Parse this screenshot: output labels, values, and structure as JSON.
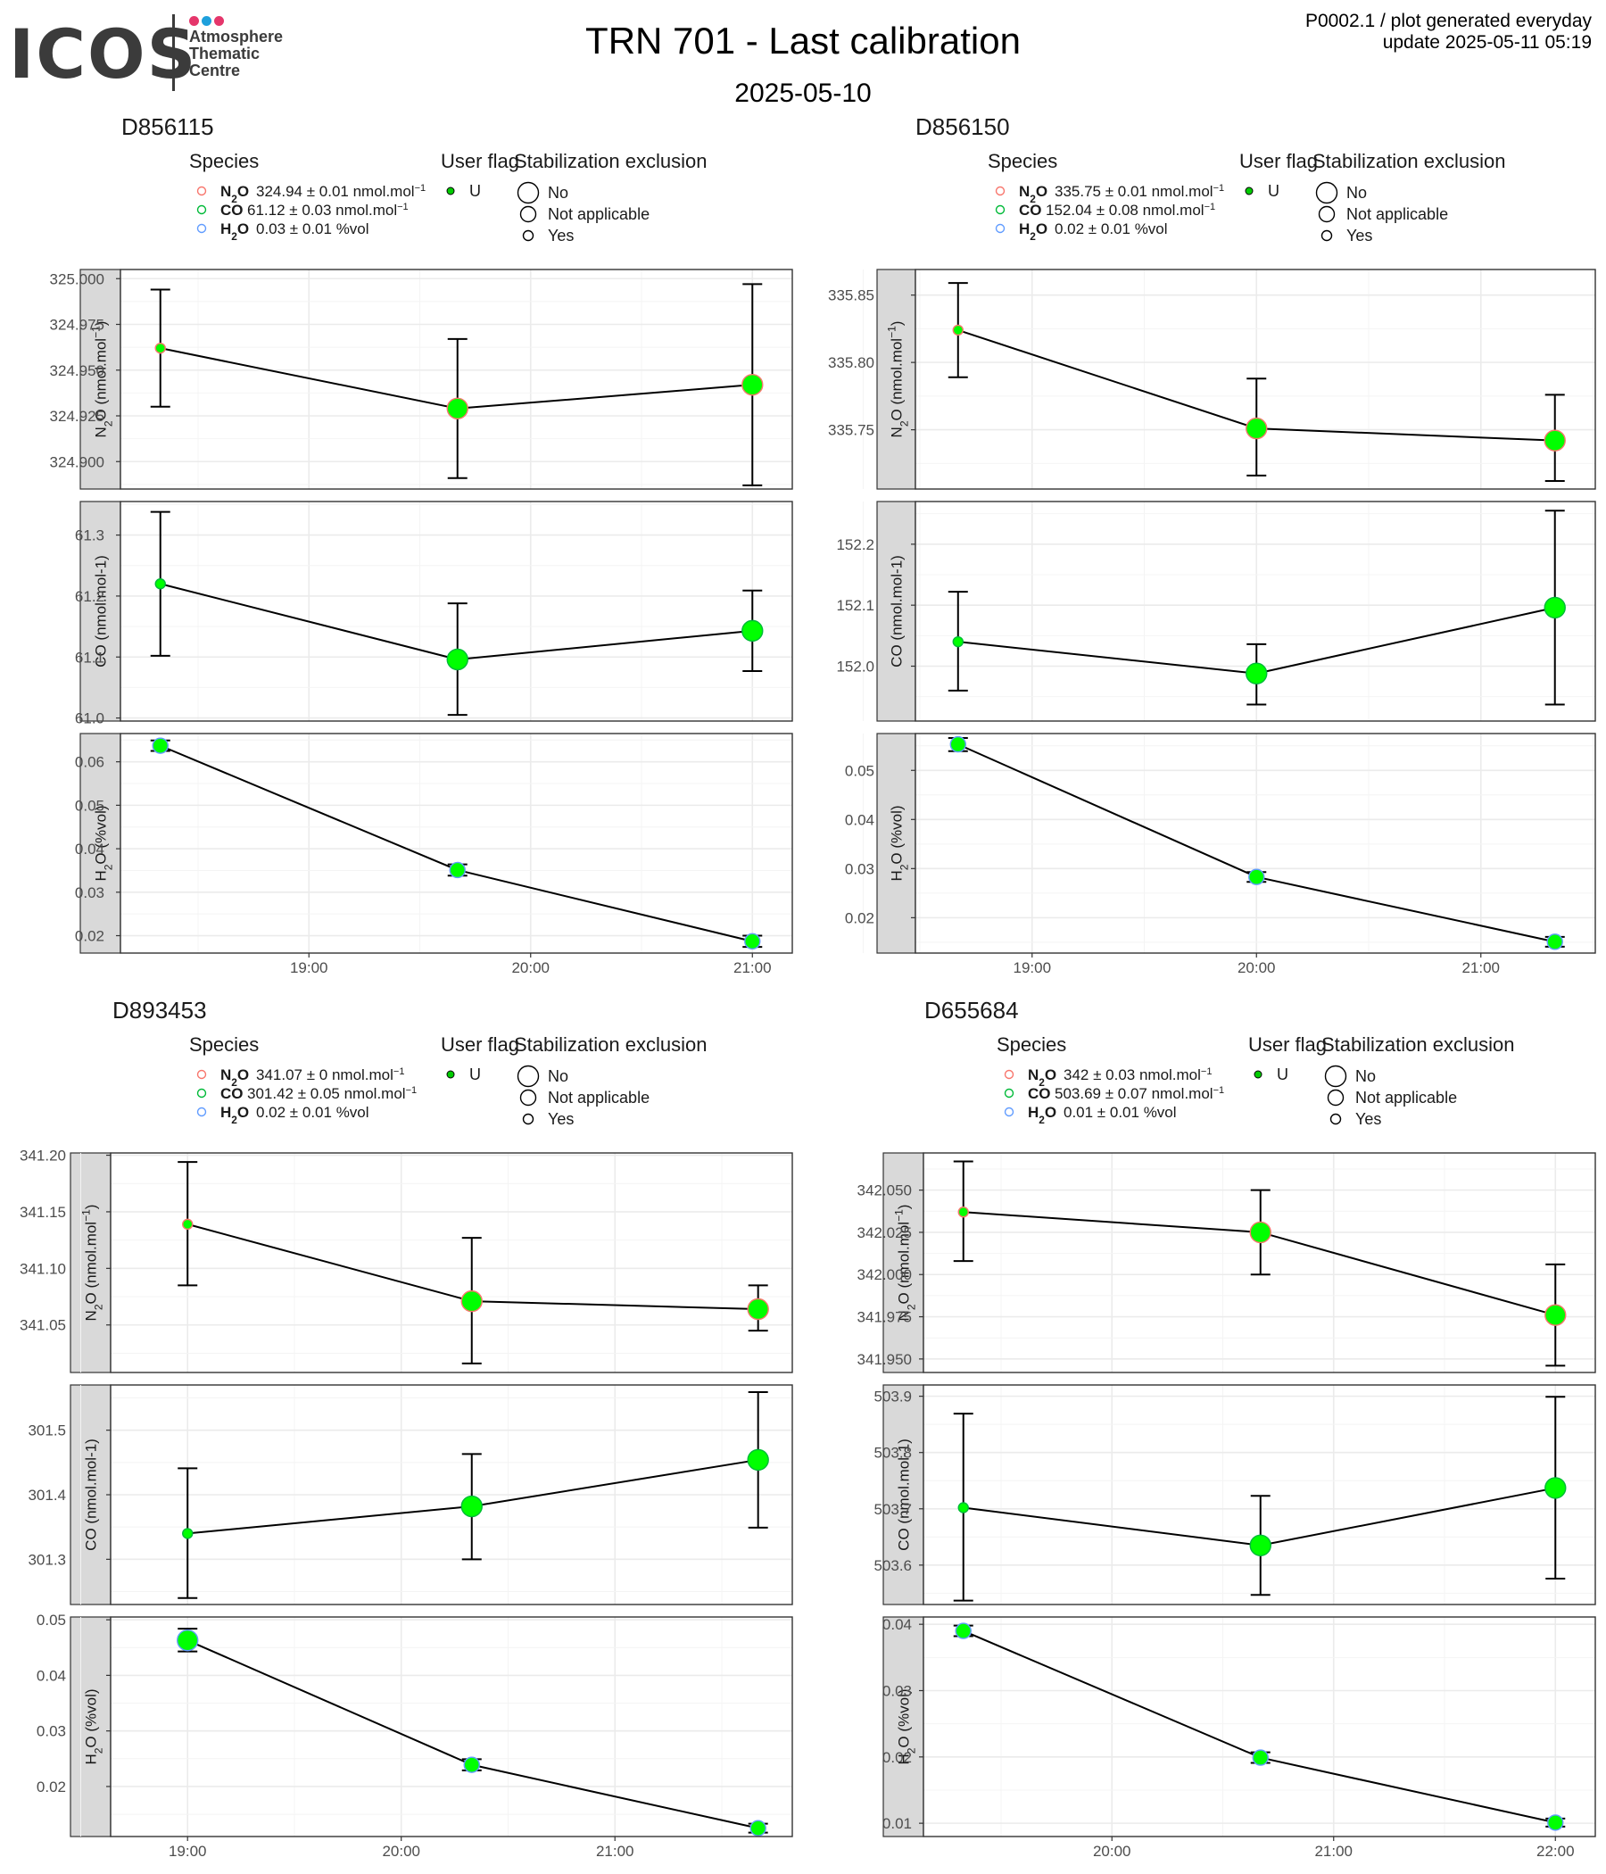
{
  "header": {
    "logo_text": "ICOS",
    "logo_subtitle": [
      "Atmosphere",
      "Thematic",
      "Centre"
    ],
    "logo_dots": [
      "#e5366b",
      "#1ea0dc",
      "#e5366b"
    ],
    "title": "TRN 701 - Last calibration",
    "subtitle": "2025-05-10",
    "credit_line1": "P0002.1 / plot generated everyday",
    "credit_line2": "update  2025-05-11 05:19"
  },
  "legend": {
    "species_title": "Species",
    "user_flag_title": "User flag",
    "stabilization_title": "Stabilization exclusion",
    "user_flag_value": "U",
    "stabilization_values": [
      "No",
      "Not applicable",
      "Yes"
    ]
  },
  "colors": {
    "n2o": "#f8766d",
    "co": "#00ba38",
    "h2o": "#619cff",
    "point_fill": "#00ff00",
    "strip": "#d9d9d9",
    "grid": "#ebebeb"
  },
  "chart_data": [
    {
      "type": "scatter",
      "title": "D856115",
      "legend_species": [
        {
          "name": "N2O",
          "value": "324.94",
          "unc": "0.01",
          "unit": "nmol.mol"
        },
        {
          "name": "CO",
          "value": "61.12",
          "unc": "0.03",
          "unit": "nmol.mol"
        },
        {
          "name": "H2O",
          "value": "0.03",
          "unc": "0.01",
          "unit": "%vol"
        }
      ],
      "x_ticks": [
        "19:00",
        "20:00",
        "21:00"
      ],
      "x_tick_hours": [
        19,
        20,
        21
      ],
      "x_range": [
        18.15,
        21.18
      ],
      "facets": [
        {
          "strip_label": "N2O (nmol.mol-1)",
          "ylim": [
            324.885,
            325.005
          ],
          "y_ticks": [
            325.0,
            324.975,
            324.95,
            324.925,
            324.9
          ],
          "y_tick_labels": [
            "325.000",
            "324.975",
            "324.950",
            "324.925",
            "324.900"
          ],
          "points": [
            {
              "x": 18.33,
              "y": 324.962,
              "lo": 324.93,
              "hi": 324.994,
              "size": "Yes"
            },
            {
              "x": 19.67,
              "y": 324.929,
              "lo": 324.891,
              "hi": 324.967,
              "size": "No"
            },
            {
              "x": 21.0,
              "y": 324.942,
              "lo": 324.887,
              "hi": 324.997,
              "size": "No"
            }
          ]
        },
        {
          "strip_label": "CO (nmol.mol-1)",
          "ylim": [
            60.995,
            61.355
          ],
          "y_ticks": [
            61.3,
            61.2,
            61.1,
            61.0
          ],
          "y_tick_labels": [
            "61.3",
            "61.2",
            "61.1",
            "61.0"
          ],
          "points": [
            {
              "x": 18.33,
              "y": 61.22,
              "lo": 61.102,
              "hi": 61.338,
              "size": "Yes"
            },
            {
              "x": 19.67,
              "y": 61.096,
              "lo": 61.005,
              "hi": 61.188,
              "size": "No"
            },
            {
              "x": 21.0,
              "y": 61.143,
              "lo": 61.077,
              "hi": 61.209,
              "size": "No"
            }
          ]
        },
        {
          "strip_label": "H2O (%vol)",
          "ylim": [
            0.016,
            0.0665
          ],
          "y_ticks": [
            0.06,
            0.05,
            0.04,
            0.03,
            0.02
          ],
          "y_tick_labels": [
            "0.06",
            "0.05",
            "0.04",
            "0.03",
            "0.02"
          ],
          "points": [
            {
              "x": 18.33,
              "y": 0.0637,
              "lo": 0.0625,
              "hi": 0.0649,
              "size": "Not applicable"
            },
            {
              "x": 19.67,
              "y": 0.0351,
              "lo": 0.0338,
              "hi": 0.0364,
              "size": "Not applicable"
            },
            {
              "x": 21.0,
              "y": 0.0187,
              "lo": 0.0174,
              "hi": 0.02,
              "size": "Not applicable"
            }
          ]
        }
      ]
    },
    {
      "type": "scatter",
      "title": "D856150",
      "legend_species": [
        {
          "name": "N2O",
          "value": "335.75",
          "unc": "0.01",
          "unit": "nmol.mol"
        },
        {
          "name": "CO",
          "value": "152.04",
          "unc": "0.08",
          "unit": "nmol.mol"
        },
        {
          "name": "H2O",
          "value": "0.02",
          "unc": "0.01",
          "unit": "%vol"
        }
      ],
      "x_ticks": [
        "19:00",
        "20:00",
        "21:00"
      ],
      "x_tick_hours": [
        19,
        20,
        21
      ],
      "x_range": [
        18.48,
        21.51
      ],
      "facets": [
        {
          "strip_label": "N2O (nmol.mol-1)",
          "ylim": [
            335.706,
            335.869
          ],
          "y_ticks": [
            335.85,
            335.8,
            335.75
          ],
          "y_tick_labels": [
            "335.85",
            "335.80",
            "335.75"
          ],
          "points": [
            {
              "x": 18.67,
              "y": 335.824,
              "lo": 335.789,
              "hi": 335.859,
              "size": "Yes"
            },
            {
              "x": 20.0,
              "y": 335.751,
              "lo": 335.716,
              "hi": 335.788,
              "size": "No"
            },
            {
              "x": 21.33,
              "y": 335.742,
              "lo": 335.712,
              "hi": 335.776,
              "size": "No"
            }
          ]
        },
        {
          "strip_label": "CO (nmol.mol-1)",
          "ylim": [
            151.91,
            152.27
          ],
          "y_ticks": [
            152.2,
            152.1,
            152.0
          ],
          "y_tick_labels": [
            "152.2",
            "152.1",
            "152.0"
          ],
          "points": [
            {
              "x": 18.67,
              "y": 152.04,
              "lo": 151.96,
              "hi": 152.122,
              "size": "Yes"
            },
            {
              "x": 20.0,
              "y": 151.988,
              "lo": 151.937,
              "hi": 152.036,
              "size": "No"
            },
            {
              "x": 21.33,
              "y": 152.096,
              "lo": 151.937,
              "hi": 152.255,
              "size": "No"
            }
          ]
        },
        {
          "strip_label": "H2O (%vol)",
          "ylim": [
            0.0128,
            0.0575
          ],
          "y_ticks": [
            0.05,
            0.04,
            0.03,
            0.02
          ],
          "y_tick_labels": [
            "0.05",
            "0.04",
            "0.03",
            "0.02"
          ],
          "points": [
            {
              "x": 18.67,
              "y": 0.0553,
              "lo": 0.0539,
              "hi": 0.0566,
              "size": "Not applicable"
            },
            {
              "x": 20.0,
              "y": 0.0283,
              "lo": 0.0273,
              "hi": 0.0293,
              "size": "Not applicable"
            },
            {
              "x": 21.33,
              "y": 0.0151,
              "lo": 0.0141,
              "hi": 0.0161,
              "size": "Not applicable"
            }
          ]
        }
      ]
    },
    {
      "type": "scatter",
      "title": "D893453",
      "legend_species": [
        {
          "name": "N2O",
          "value": "341.07",
          "unc": "0",
          "unit": "nmol.mol"
        },
        {
          "name": "CO",
          "value": "301.42",
          "unc": "0.05",
          "unit": "nmol.mol"
        },
        {
          "name": "H2O",
          "value": "0.02",
          "unc": "0.01",
          "unit": "%vol"
        }
      ],
      "x_ticks": [
        "19:00",
        "20:00",
        "21:00"
      ],
      "x_tick_hours": [
        19,
        20,
        21
      ],
      "x_range": [
        18.64,
        21.83
      ],
      "facets": [
        {
          "strip_label": "N2O (nmol.mol-1)",
          "ylim": [
            341.008,
            341.202
          ],
          "y_ticks": [
            341.2,
            341.15,
            341.1,
            341.05
          ],
          "y_tick_labels": [
            "341.20",
            "341.15",
            "341.10",
            "341.05"
          ],
          "points": [
            {
              "x": 19.0,
              "y": 341.139,
              "lo": 341.085,
              "hi": 341.194,
              "size": "Yes"
            },
            {
              "x": 20.33,
              "y": 341.071,
              "lo": 341.016,
              "hi": 341.127,
              "size": "No"
            },
            {
              "x": 21.67,
              "y": 341.064,
              "lo": 341.045,
              "hi": 341.085,
              "size": "No"
            }
          ]
        },
        {
          "strip_label": "CO (nmol.mol-1)",
          "ylim": [
            301.23,
            301.57
          ],
          "y_ticks": [
            301.5,
            301.4,
            301.3
          ],
          "y_tick_labels": [
            "301.5",
            "301.4",
            "301.3"
          ],
          "points": [
            {
              "x": 19.0,
              "y": 301.34,
              "lo": 301.24,
              "hi": 301.441,
              "size": "Yes"
            },
            {
              "x": 20.33,
              "y": 301.382,
              "lo": 301.3,
              "hi": 301.463,
              "size": "No"
            },
            {
              "x": 21.67,
              "y": 301.454,
              "lo": 301.349,
              "hi": 301.559,
              "size": "No"
            }
          ]
        },
        {
          "strip_label": "H2O (%vol)",
          "ylim": [
            0.011,
            0.0505
          ],
          "y_ticks": [
            0.05,
            0.04,
            0.03,
            0.02
          ],
          "y_tick_labels": [
            "0.05",
            "0.04",
            "0.03",
            "0.02"
          ],
          "points": [
            {
              "x": 19.0,
              "y": 0.0463,
              "lo": 0.0443,
              "hi": 0.0484,
              "size": "No"
            },
            {
              "x": 20.33,
              "y": 0.0239,
              "lo": 0.0229,
              "hi": 0.0249,
              "size": "Not applicable"
            },
            {
              "x": 21.67,
              "y": 0.0125,
              "lo": 0.0117,
              "hi": 0.0133,
              "size": "Not applicable"
            }
          ]
        }
      ]
    },
    {
      "type": "scatter",
      "title": "D655684",
      "legend_species": [
        {
          "name": "N2O",
          "value": "342",
          "unc": "0.03",
          "unit": "nmol.mol"
        },
        {
          "name": "CO",
          "value": "503.69",
          "unc": "0.07",
          "unit": "nmol.mol"
        },
        {
          "name": "H2O",
          "value": "0.01",
          "unc": "0.01",
          "unit": "%vol"
        }
      ],
      "x_ticks": [
        "20:00",
        "21:00",
        "22:00"
      ],
      "x_tick_hours": [
        20,
        21,
        22
      ],
      "x_range": [
        19.15,
        22.18
      ],
      "facets": [
        {
          "strip_label": "N2O (nmol.mol-1)",
          "ylim": [
            341.942,
            342.072
          ],
          "y_ticks": [
            342.05,
            342.025,
            342.0,
            341.975,
            341.95
          ],
          "y_tick_labels": [
            "342.050",
            "342.025",
            "342.000",
            "341.975",
            "341.950"
          ],
          "points": [
            {
              "x": 19.33,
              "y": 342.037,
              "lo": 342.008,
              "hi": 342.067,
              "size": "Yes"
            },
            {
              "x": 20.67,
              "y": 342.025,
              "lo": 342.0,
              "hi": 342.05,
              "size": "No"
            },
            {
              "x": 22.0,
              "y": 341.976,
              "lo": 341.946,
              "hi": 342.006,
              "size": "No"
            }
          ]
        },
        {
          "strip_label": "CO (nmol.mol-1)",
          "ylim": [
            503.53,
            503.92
          ],
          "y_ticks": [
            503.9,
            503.8,
            503.7,
            503.6
          ],
          "y_tick_labels": [
            "503.9",
            "503.8",
            "503.7",
            "503.6"
          ],
          "points": [
            {
              "x": 19.33,
              "y": 503.702,
              "lo": 503.537,
              "hi": 503.869,
              "size": "Yes"
            },
            {
              "x": 20.67,
              "y": 503.635,
              "lo": 503.547,
              "hi": 503.723,
              "size": "No"
            },
            {
              "x": 22.0,
              "y": 503.737,
              "lo": 503.576,
              "hi": 503.899,
              "size": "No"
            }
          ]
        },
        {
          "strip_label": "H2O (%vol)",
          "ylim": [
            0.008,
            0.0411
          ],
          "y_ticks": [
            0.04,
            0.03,
            0.02,
            0.01
          ],
          "y_tick_labels": [
            "0.04",
            "0.03",
            "0.02",
            "0.01"
          ],
          "points": [
            {
              "x": 19.33,
              "y": 0.039,
              "lo": 0.0382,
              "hi": 0.0398,
              "size": "Not applicable"
            },
            {
              "x": 20.67,
              "y": 0.0199,
              "lo": 0.0191,
              "hi": 0.0207,
              "size": "Not applicable"
            },
            {
              "x": 22.0,
              "y": 0.0101,
              "lo": 0.0095,
              "hi": 0.0107,
              "size": "Not applicable"
            }
          ]
        }
      ]
    }
  ]
}
